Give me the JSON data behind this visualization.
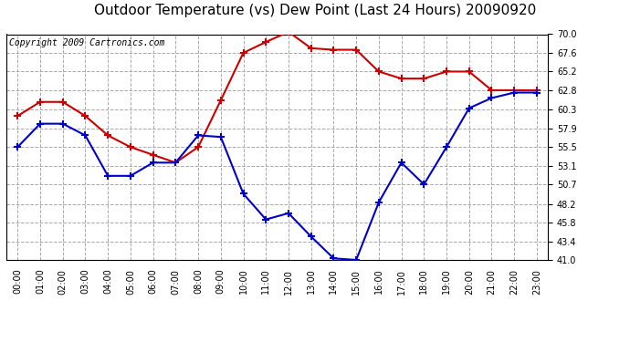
{
  "title": "Outdoor Temperature (vs) Dew Point (Last 24 Hours) 20090920",
  "copyright": "Copyright 2009 Cartronics.com",
  "x_labels": [
    "00:00",
    "01:00",
    "02:00",
    "03:00",
    "04:00",
    "05:00",
    "06:00",
    "07:00",
    "08:00",
    "09:00",
    "10:00",
    "11:00",
    "12:00",
    "13:00",
    "14:00",
    "15:00",
    "16:00",
    "17:00",
    "18:00",
    "19:00",
    "20:00",
    "21:00",
    "22:00",
    "23:00"
  ],
  "temp_data": [
    55.5,
    58.5,
    58.5,
    57.0,
    51.8,
    51.8,
    53.5,
    53.5,
    57.0,
    56.8,
    49.5,
    46.2,
    47.0,
    44.0,
    41.2,
    41.0,
    48.4,
    53.5,
    50.7,
    55.5,
    60.5,
    61.8,
    62.5,
    62.5
  ],
  "dew_data": [
    59.5,
    61.3,
    61.3,
    59.5,
    57.0,
    55.5,
    54.5,
    53.5,
    55.5,
    61.5,
    67.6,
    69.0,
    70.3,
    68.2,
    68.0,
    68.0,
    65.2,
    64.3,
    64.3,
    65.2,
    65.2,
    62.8,
    62.8,
    62.8
  ],
  "ylim": [
    41.0,
    70.0
  ],
  "yticks": [
    41.0,
    43.4,
    45.8,
    48.2,
    50.7,
    53.1,
    55.5,
    57.9,
    60.3,
    62.8,
    65.2,
    67.6,
    70.0
  ],
  "bg_color": "#ffffff",
  "plot_bg_color": "#ffffff",
  "grid_color": "#aaaaaa",
  "temp_color": "#0000cc",
  "dew_color": "#cc0000",
  "title_fontsize": 11,
  "copyright_fontsize": 7,
  "tick_fontsize": 7,
  "x_tick_fontsize": 7
}
